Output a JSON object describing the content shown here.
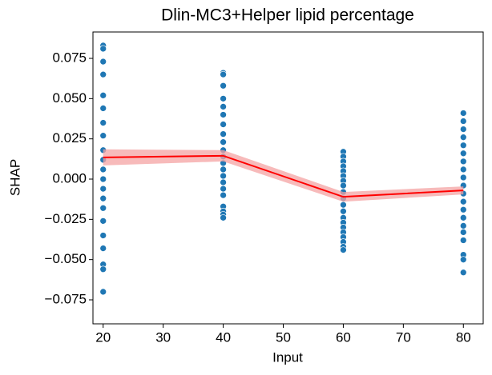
{
  "chart_data": {
    "type": "scatter",
    "title": "Dlin-MC3+Helper lipid percentage",
    "x_label": "Input",
    "y_label": "SHAP",
    "xlim": [
      18.3,
      83.3
    ],
    "ylim": [
      -0.0899,
      0.0914
    ],
    "xticks": [
      20,
      30,
      40,
      50,
      60,
      70,
      80
    ],
    "yticks": [
      {
        "value": -0.075,
        "label": "−0.075"
      },
      {
        "value": -0.05,
        "label": "−0.050"
      },
      {
        "value": -0.025,
        "label": "−0.025"
      },
      {
        "value": 0,
        "label": "0.000"
      },
      0.025,
      {
        "value": 0.05,
        "label": "0.050"
      },
      0.075
    ],
    "point_color": "#1f77b4",
    "groups": [
      {
        "x": 20,
        "values": [
          0.083,
          0.081,
          0.073,
          0.065,
          0.052,
          0.044,
          0.035,
          0.027,
          0.018,
          0.012,
          0.006,
          0.0,
          -0.006,
          -0.012,
          -0.018,
          -0.026,
          -0.035,
          -0.043,
          -0.053,
          -0.056,
          -0.07
        ]
      },
      {
        "x": 40,
        "values": [
          0.066,
          0.065,
          0.058,
          0.05,
          0.045,
          0.04,
          0.034,
          0.028,
          0.023,
          0.018,
          0.014,
          0.01,
          0.006,
          0.002,
          -0.002,
          -0.006,
          -0.01,
          -0.017,
          -0.02,
          -0.022,
          -0.024
        ]
      },
      {
        "x": 60,
        "values": [
          0.017,
          0.014,
          0.011,
          0.008,
          0.005,
          0.002,
          -0.001,
          -0.004,
          -0.008,
          -0.012,
          -0.016,
          -0.02,
          -0.024,
          -0.027,
          -0.03,
          -0.033,
          -0.036,
          -0.039,
          -0.042,
          -0.044
        ]
      },
      {
        "x": 80,
        "values": [
          0.041,
          0.036,
          0.031,
          0.026,
          0.021,
          0.016,
          0.011,
          0.006,
          0.001,
          -0.004,
          -0.009,
          -0.014,
          -0.019,
          -0.024,
          -0.029,
          -0.033,
          -0.038,
          -0.047,
          -0.05,
          -0.058
        ]
      }
    ],
    "mean_line": {
      "x": [
        20,
        40,
        60,
        80
      ],
      "values": [
        0.0135,
        0.0145,
        -0.011,
        -0.007
      ],
      "lower": [
        0.0085,
        0.011,
        -0.014,
        -0.0095
      ],
      "upper": [
        0.0185,
        0.018,
        -0.008,
        -0.0045
      ],
      "color": "#ff0000",
      "band_color": "#f4a3a3"
    }
  }
}
